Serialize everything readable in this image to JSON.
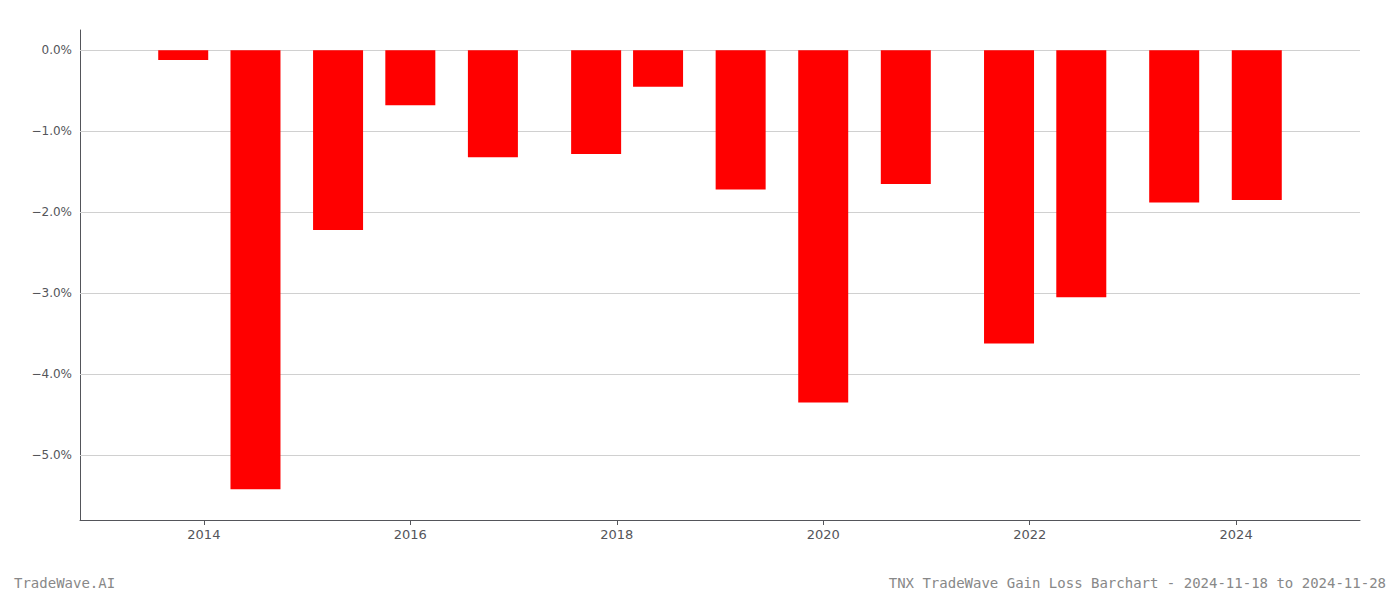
{
  "chart_data": {
    "type": "bar",
    "x": [
      2013.8,
      2014.5,
      2015.3,
      2016.0,
      2016.8,
      2017.8,
      2018.4,
      2019.2,
      2020.0,
      2020.8,
      2021.8,
      2022.5,
      2023.4,
      2024.2
    ],
    "values": [
      -0.12,
      -5.42,
      -2.22,
      -0.68,
      -1.32,
      -1.28,
      -0.45,
      -1.72,
      -4.35,
      -1.65,
      -3.62,
      -3.05,
      -1.88,
      -1.85
    ],
    "color": "#ff0000",
    "xlim": [
      2012.8,
      2025.2
    ],
    "xticks": [
      2014,
      2016,
      2018,
      2020,
      2022,
      2024
    ],
    "ylim": [
      -5.8,
      0.25
    ],
    "yticks": [
      {
        "value": 0.0,
        "label": "0.0%"
      },
      {
        "value": -1.0,
        "label": "−1.0%"
      },
      {
        "value": -2.0,
        "label": "−2.0%"
      },
      {
        "value": -3.0,
        "label": "−3.0%"
      },
      {
        "value": -4.0,
        "label": "−4.0%"
      },
      {
        "value": -5.0,
        "label": "−5.0%"
      }
    ],
    "grid": true,
    "annotations": [
      "TradeWave.AI",
      "TNX TradeWave Gain Loss Barchart - 2024-11-18 to 2024-11-28"
    ]
  }
}
